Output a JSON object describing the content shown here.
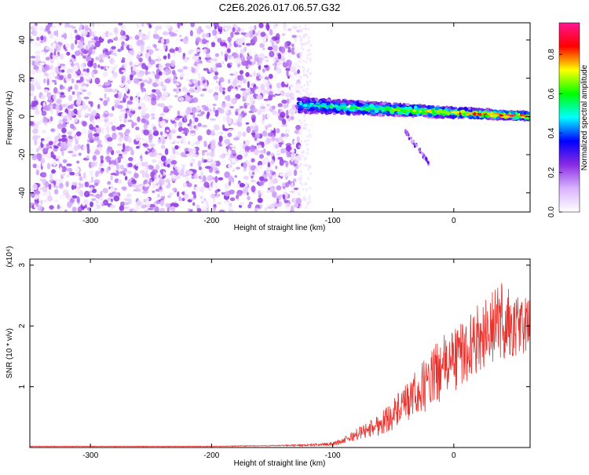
{
  "figure": {
    "title": "C2E6.2026.017.06.57.G32"
  },
  "chart_data": [
    {
      "type": "heatmap",
      "xlabel": "Height of straight line (km)",
      "ylabel": "Frequency (Hz)",
      "xlim": [
        -350,
        63
      ],
      "ylim": [
        -50,
        49
      ],
      "xticks": [
        -300,
        -200,
        -100,
        0
      ],
      "yticks": [
        -40,
        -20,
        0,
        20,
        40
      ],
      "grid": false,
      "colorbar": {
        "label": "Normalized spectral amplitude",
        "range": [
          0.0,
          0.96
        ],
        "ticks": [
          0.0,
          0.2,
          0.4,
          0.6,
          0.8
        ],
        "colormap": [
          "#ffffff",
          "#d9b3ff",
          "#8a2be2",
          "#0000ff",
          "#00ffff",
          "#00ff00",
          "#ffff00",
          "#ff0000",
          "#ff1493"
        ]
      },
      "regions": [
        {
          "x_range": [
            -350,
            -128
          ],
          "freq_range": [
            -50,
            49
          ],
          "amplitude_range": [
            0.0,
            0.25
          ],
          "pattern": "broadband noise"
        },
        {
          "x_range": [
            -128,
            63
          ],
          "freq_center_start": 6,
          "freq_center_end": 0,
          "bandwidth_hz": 8,
          "amplitude_range": [
            0.2,
            0.96
          ],
          "pattern": "narrow carrier band"
        },
        {
          "x_range": [
            -40,
            -20
          ],
          "freq_range": [
            -25,
            -8
          ],
          "amplitude_range": [
            0.1,
            0.3
          ],
          "pattern": "faint tail"
        }
      ]
    },
    {
      "type": "line",
      "xlabel": "Height of straight line (km)",
      "ylabel": "SNR (10 * v/v)",
      "y_multiplier": "(x10⁴)",
      "xlim": [
        -350,
        63
      ],
      "ylim": [
        0,
        3.1
      ],
      "xticks": [
        -300,
        -200,
        -100,
        0
      ],
      "yticks": [
        1,
        2,
        3
      ],
      "grid": false,
      "color": "#e8322e",
      "series": [
        {
          "x": [
            -350,
            -300,
            -250,
            -200,
            -150,
            -120,
            -100,
            -90,
            -80,
            -70,
            -60,
            -50,
            -40,
            -30,
            -20,
            -10,
            0,
            10,
            20,
            30,
            40,
            50,
            63
          ],
          "y": [
            0.02,
            0.02,
            0.02,
            0.02,
            0.03,
            0.04,
            0.06,
            0.12,
            0.22,
            0.3,
            0.4,
            0.55,
            0.7,
            0.9,
            1.1,
            1.3,
            1.45,
            1.6,
            1.8,
            1.95,
            2.1,
            1.95,
            2.05
          ],
          "noise": [
            0.005,
            0.005,
            0.005,
            0.005,
            0.008,
            0.015,
            0.03,
            0.06,
            0.1,
            0.14,
            0.2,
            0.26,
            0.32,
            0.4,
            0.48,
            0.52,
            0.55,
            0.55,
            0.55,
            0.58,
            0.7,
            0.6,
            0.4
          ]
        }
      ]
    }
  ]
}
